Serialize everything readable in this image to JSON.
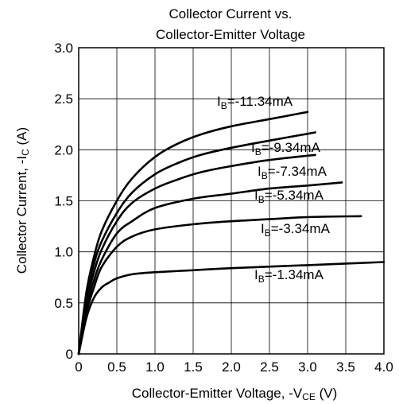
{
  "chart_data": {
    "type": "line",
    "title": [
      "Collector Current vs.",
      "Collector-Emitter Voltage"
    ],
    "xlabel": {
      "main": "Collector-Emitter Voltage, -V",
      "sub": "CE",
      "unit": " (V)"
    },
    "ylabel": {
      "main": "Collector Current, -I",
      "sub": "C",
      "unit": " (A)"
    },
    "xlim": [
      0,
      4.0
    ],
    "ylim": [
      0,
      3.0
    ],
    "xticks": [
      "0",
      "0.5",
      "1.0",
      "1.5",
      "2.0",
      "2.5",
      "3.0",
      "3.5",
      "4.0"
    ],
    "yticks": [
      "0",
      "0.5",
      "1.0",
      "1.5",
      "2.0",
      "2.5",
      "3.0"
    ],
    "grid": true,
    "series": [
      {
        "name": "IB=-11.34mA",
        "label_main": "I",
        "label_sub": "B",
        "label_rest": "=-11.34mA",
        "x": [
          0,
          0.1,
          0.2,
          0.3,
          0.5,
          0.7,
          1.0,
          1.3,
          1.6,
          2.0,
          2.5,
          3.0
        ],
        "y": [
          0,
          0.6,
          0.95,
          1.2,
          1.5,
          1.72,
          1.93,
          2.06,
          2.15,
          2.23,
          2.3,
          2.37
        ]
      },
      {
        "name": "IB=-9.34mA",
        "label_main": "I",
        "label_sub": "B",
        "label_rest": "=-9.34mA",
        "x": [
          0,
          0.1,
          0.2,
          0.3,
          0.5,
          0.7,
          1.0,
          1.3,
          1.6,
          2.0,
          2.5,
          3.1
        ],
        "y": [
          0,
          0.55,
          0.88,
          1.1,
          1.38,
          1.58,
          1.76,
          1.87,
          1.95,
          2.02,
          2.09,
          2.17
        ]
      },
      {
        "name": "IB=-7.34mA",
        "label_main": "I",
        "label_sub": "B",
        "label_rest": "=-7.34mA",
        "x": [
          0,
          0.1,
          0.2,
          0.3,
          0.5,
          0.7,
          1.0,
          1.3,
          1.6,
          2.0,
          2.5,
          3.1
        ],
        "y": [
          0,
          0.5,
          0.8,
          1.02,
          1.3,
          1.48,
          1.62,
          1.71,
          1.78,
          1.84,
          1.9,
          1.95
        ]
      },
      {
        "name": "IB=-5.34mA",
        "label_main": "I",
        "label_sub": "B",
        "label_rest": "=-5.34mA",
        "x": [
          0,
          0.1,
          0.2,
          0.3,
          0.5,
          0.7,
          1.0,
          1.5,
          2.0,
          2.5,
          3.0,
          3.45
        ],
        "y": [
          0,
          0.45,
          0.72,
          0.92,
          1.18,
          1.3,
          1.43,
          1.52,
          1.57,
          1.62,
          1.65,
          1.68
        ]
      },
      {
        "name": "IB=-3.34mA",
        "label_main": "I",
        "label_sub": "B",
        "label_rest": "=-3.34mA",
        "x": [
          0,
          0.1,
          0.2,
          0.3,
          0.5,
          0.7,
          1.0,
          1.5,
          2.0,
          2.5,
          3.0,
          3.7
        ],
        "y": [
          0,
          0.4,
          0.65,
          0.85,
          1.05,
          1.15,
          1.22,
          1.27,
          1.3,
          1.32,
          1.34,
          1.35
        ]
      },
      {
        "name": "IB=-1.34mA",
        "label_main": "I",
        "label_sub": "B",
        "label_rest": "=-1.34mA",
        "x": [
          0,
          0.1,
          0.2,
          0.3,
          0.4,
          0.5,
          0.7,
          1.0,
          1.5,
          2.0,
          3.0,
          4.0
        ],
        "y": [
          0,
          0.35,
          0.55,
          0.65,
          0.7,
          0.74,
          0.78,
          0.8,
          0.82,
          0.84,
          0.87,
          0.9
        ]
      }
    ]
  }
}
